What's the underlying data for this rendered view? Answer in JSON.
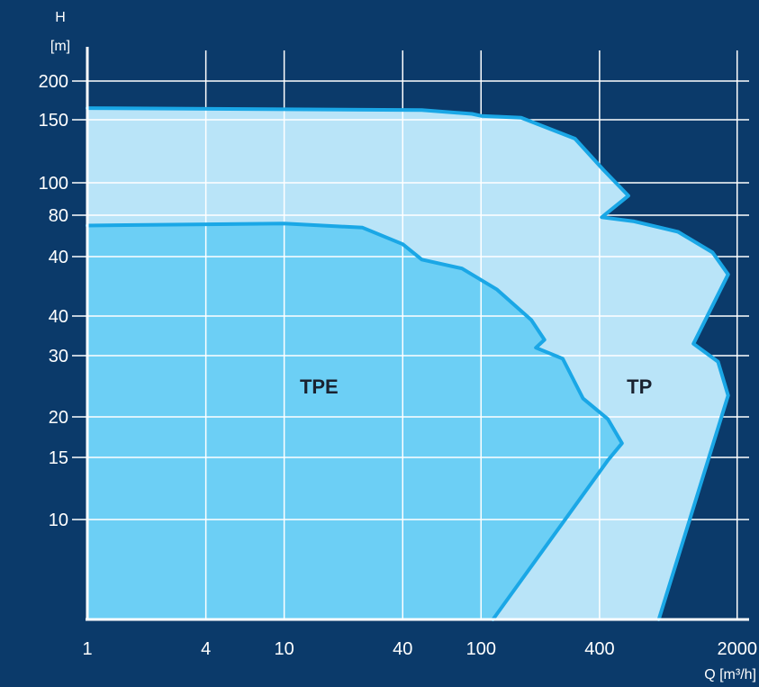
{
  "chart_data": {
    "type": "area",
    "title": "",
    "xlabel": "Q [m³/h]",
    "ylabel": "H [m]",
    "x_scale": "log",
    "grid": true,
    "legend": "none",
    "xlim": [
      1,
      2300
    ],
    "x_ticks": [
      {
        "label": "1",
        "value": 1
      },
      {
        "label": "4",
        "value": 4
      },
      {
        "label": "10",
        "value": 10
      },
      {
        "label": "40",
        "value": 40
      },
      {
        "label": "100",
        "value": 100
      },
      {
        "label": "400",
        "value": 400
      },
      {
        "label": "2000",
        "value": 2000
      }
    ],
    "y_ticks": [
      {
        "label": "200",
        "rank": 10
      },
      {
        "label": "150",
        "rank": 9
      },
      {
        "label": "100",
        "rank": 8
      },
      {
        "label": "80",
        "rank": 7
      },
      {
        "label": "40",
        "rank": 6
      },
      {
        "label": "40",
        "rank": 5
      },
      {
        "label": "30",
        "rank": 4
      },
      {
        "label": "20",
        "rank": 3
      },
      {
        "label": "15",
        "rank": 2
      },
      {
        "label": "10",
        "rank": 1
      }
    ],
    "series": [
      {
        "name": "TP",
        "label_at": {
          "x": 550,
          "rank": 3.5
        },
        "outline": [
          {
            "x": 1,
            "rank": 9.3
          },
          {
            "x": 50,
            "rank": 9.25
          },
          {
            "x": 90,
            "rank": 9.15
          },
          {
            "x": 100,
            "rank": 9.1
          },
          {
            "x": 160,
            "rank": 9.05
          },
          {
            "x": 300,
            "rank": 8.7
          },
          {
            "x": 420,
            "rank": 8.2
          },
          {
            "x": 560,
            "rank": 7.6
          },
          {
            "x": 410,
            "rank": 6.95
          },
          {
            "x": 600,
            "rank": 6.85
          },
          {
            "x": 1000,
            "rank": 6.6
          },
          {
            "x": 1500,
            "rank": 6.1
          },
          {
            "x": 1800,
            "rank": 5.7
          },
          {
            "x": 1200,
            "rank": 4.3
          },
          {
            "x": 1600,
            "rank": 3.9
          },
          {
            "x": 1800,
            "rank": 3.35
          },
          {
            "x": 800,
            "rank": 0
          }
        ]
      },
      {
        "name": "TPE",
        "label_at": {
          "x": 12,
          "rank": 3.5
        },
        "outline": [
          {
            "x": 1,
            "rank": 6.75
          },
          {
            "x": 10,
            "rank": 6.8
          },
          {
            "x": 25,
            "rank": 6.7
          },
          {
            "x": 40,
            "rank": 6.3
          },
          {
            "x": 50,
            "rank": 5.95
          },
          {
            "x": 80,
            "rank": 5.8
          },
          {
            "x": 120,
            "rank": 5.45
          },
          {
            "x": 180,
            "rank": 4.9
          },
          {
            "x": 210,
            "rank": 4.4
          },
          {
            "x": 190,
            "rank": 4.2
          },
          {
            "x": 260,
            "rank": 3.95
          },
          {
            "x": 330,
            "rank": 3.3
          },
          {
            "x": 440,
            "rank": 2.95
          },
          {
            "x": 520,
            "rank": 2.35
          },
          {
            "x": 440,
            "rank": 1.95
          },
          {
            "x": 115,
            "rank": 0
          }
        ]
      }
    ]
  }
}
